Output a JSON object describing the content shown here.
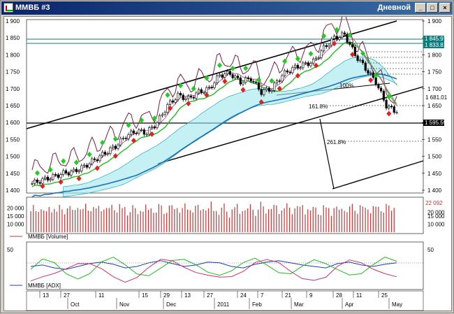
{
  "window": {
    "title": "ММВБ #3",
    "period": "Дневной",
    "minimize_glyph": "_",
    "maximize_glyph": "□",
    "close_glyph": "×"
  },
  "price_panel": {
    "y_ticks": [
      "1 900",
      "1 850",
      "1 800",
      "1 750",
      "1 700",
      "1 650",
      "1 600",
      "1 550",
      "1 500",
      "1 450",
      "1 400"
    ],
    "price_labels": {
      "upper1": "1 845.97",
      "upper2": "1 833.81",
      "mid": "1 681.01",
      "low": "1 595.59"
    },
    "fib_labels": [
      "161.8%",
      "261.8%",
      "100%"
    ]
  },
  "volume_panel": {
    "y_ticks": [
      "20 000",
      "15 000",
      "10 000"
    ],
    "last_value": "22 092",
    "legend": "ММВБ [Volume]"
  },
  "adx_panel": {
    "y_tick": "50",
    "legend": "ММВБ [ADX]"
  },
  "x_axis": {
    "day_labels": [
      "13",
      "27",
      "11",
      "15",
      "29",
      "13",
      "27",
      "24",
      "7",
      "21",
      "9",
      "28",
      "11",
      "25"
    ],
    "month_labels": [
      "Oct",
      "Nov",
      "Dec",
      "2011",
      "Feb",
      "Mar",
      "Apr",
      "May"
    ]
  },
  "colors": {
    "up_marker": "#22cc22",
    "down_marker": "#dd2222",
    "candles": "#000000",
    "ma_fast": "#22bb22",
    "ma_slow": "#1f6fb5",
    "envelope": "#7a1f3d",
    "cloud": "#00bbbb",
    "volume_bars": "#cc3333"
  },
  "chart_data": [
    {
      "type": "line",
      "title": "",
      "ylim": [
        1400,
        1900
      ],
      "ylabel": "",
      "series": [
        {
          "values": [
            1420,
            1430,
            1440,
            1450,
            1455,
            1470,
            1490,
            1510,
            1530,
            1560,
            1575,
            1570,
            1600,
            1650,
            1680,
            1670,
            1690,
            1700,
            1740,
            1745,
            1720,
            1730,
            1690,
            1700,
            1740,
            1760,
            1770,
            1780,
            1820,
            1850,
            1860,
            1800,
            1760,
            1720,
            1650,
            1630
          ]
        }
      ]
    },
    {
      "type": "bar",
      "title": "",
      "ylim": [
        5000,
        25000
      ],
      "series": [
        {
          "name": "ММВБ [Volume]",
          "values": [
            18000,
            20000,
            17000,
            19000,
            21000,
            18000,
            16000,
            20000,
            19000,
            21000,
            17000,
            20000,
            19000,
            18000,
            21000,
            20000,
            17000,
            19000,
            22000,
            20000,
            18000,
            21000,
            19000,
            20000,
            21000,
            18000,
            20000,
            19000,
            21000,
            20000,
            18000,
            21000,
            20000,
            19000,
            22092
          ]
        }
      ]
    },
    {
      "type": "line",
      "title": "",
      "ylim": [
        0,
        60
      ],
      "series": [
        {
          "name": "ММВБ [ADX]",
          "values": [
            30,
            32,
            28,
            26,
            30,
            34,
            36,
            33,
            28,
            30,
            35,
            38,
            34,
            30,
            32,
            36,
            35,
            30,
            28,
            33,
            36,
            38,
            35,
            32,
            30,
            28,
            34,
            36,
            32,
            30,
            33,
            35
          ]
        }
      ]
    }
  ]
}
